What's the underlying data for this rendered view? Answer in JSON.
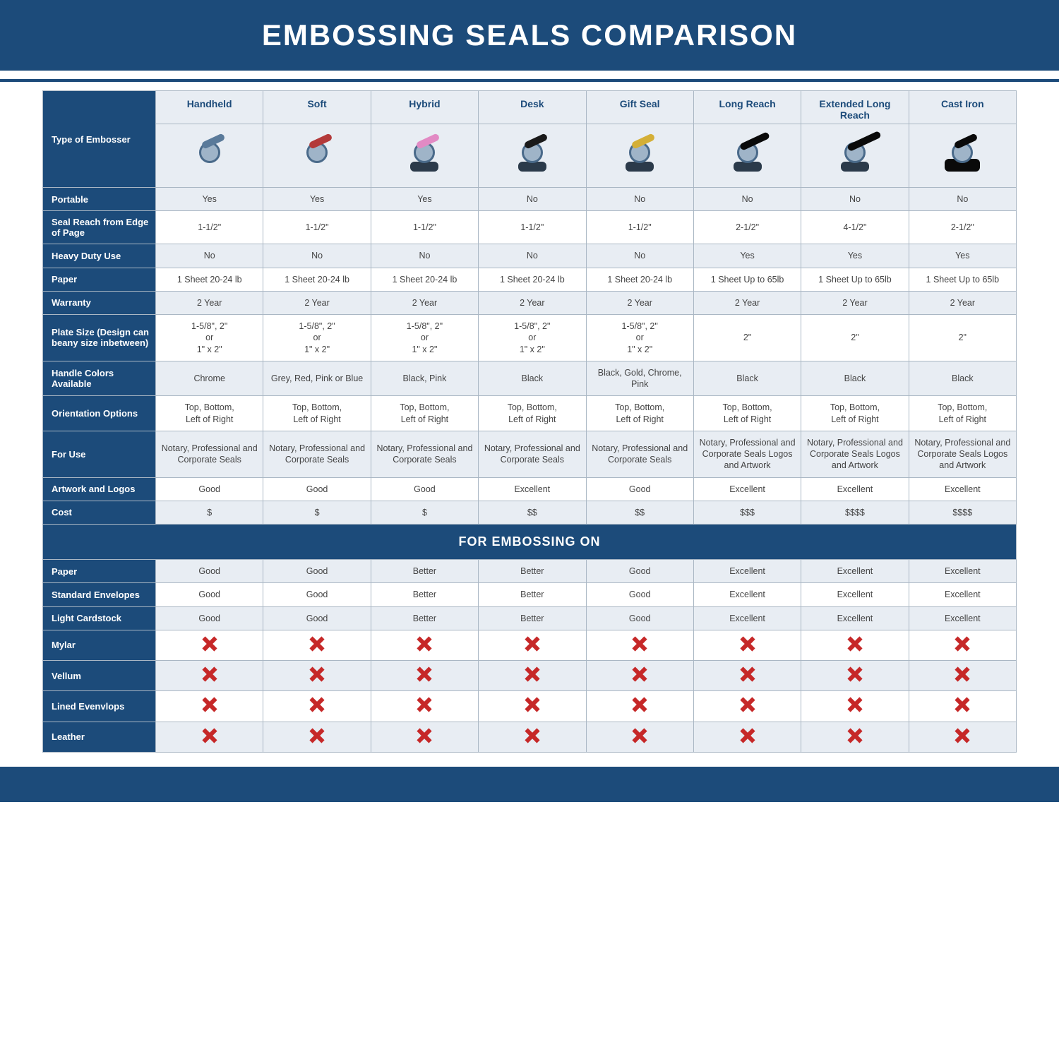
{
  "title": "EMBOSSING SEALS COMPARISON",
  "section_label": "FOR EMBOSSING ON",
  "colors": {
    "primary": "#1c4b7a",
    "header_bg": "#e8edf3",
    "alt_row_bg": "#e8edf3",
    "border": "#aab7c4",
    "x_red": "#c62828",
    "text": "#444444"
  },
  "row_header_label": "Type of Embosser",
  "columns": [
    {
      "key": "handheld",
      "label": "Handheld"
    },
    {
      "key": "soft",
      "label": "Soft"
    },
    {
      "key": "hybrid",
      "label": "Hybrid"
    },
    {
      "key": "desk",
      "label": "Desk"
    },
    {
      "key": "gift",
      "label": "Gift Seal"
    },
    {
      "key": "long",
      "label": "Long Reach"
    },
    {
      "key": "xlong",
      "label": "Extended Long Reach"
    },
    {
      "key": "iron",
      "label": "Cast Iron"
    }
  ],
  "rows": [
    {
      "label": "Portable",
      "alt": true,
      "cells": [
        "Yes",
        "Yes",
        "Yes",
        "No",
        "No",
        "No",
        "No",
        "No"
      ]
    },
    {
      "label": "Seal Reach from Edge of Page",
      "alt": false,
      "cells": [
        "1-1/2\"",
        "1-1/2\"",
        "1-1/2\"",
        "1-1/2\"",
        "1-1/2\"",
        "2-1/2\"",
        "4-1/2\"",
        "2-1/2\""
      ]
    },
    {
      "label": "Heavy Duty Use",
      "alt": true,
      "cells": [
        "No",
        "No",
        "No",
        "No",
        "No",
        "Yes",
        "Yes",
        "Yes"
      ]
    },
    {
      "label": "Paper",
      "alt": false,
      "cells": [
        "1 Sheet 20-24 lb",
        "1 Sheet 20-24 lb",
        "1 Sheet 20-24 lb",
        "1 Sheet 20-24 lb",
        "1 Sheet 20-24 lb",
        "1 Sheet Up to 65lb",
        "1 Sheet Up to 65lb",
        "1 Sheet Up to 65lb"
      ]
    },
    {
      "label": "Warranty",
      "alt": true,
      "cells": [
        "2 Year",
        "2 Year",
        "2 Year",
        "2 Year",
        "2 Year",
        "2 Year",
        "2 Year",
        "2 Year"
      ]
    },
    {
      "label": "Plate Size (Design can beany size inbetween)",
      "alt": false,
      "cells": [
        "1-5/8\", 2\"\nor\n1\" x 2\"",
        "1-5/8\", 2\"\nor\n1\" x 2\"",
        "1-5/8\", 2\"\nor\n1\" x 2\"",
        "1-5/8\", 2\"\nor\n1\" x 2\"",
        "1-5/8\", 2\"\nor\n1\" x 2\"",
        "2\"",
        "2\"",
        "2\""
      ]
    },
    {
      "label": "Handle Colors Available",
      "alt": true,
      "cells": [
        "Chrome",
        "Grey, Red, Pink or Blue",
        "Black, Pink",
        "Black",
        "Black, Gold, Chrome, Pink",
        "Black",
        "Black",
        "Black"
      ]
    },
    {
      "label": "Orientation Options",
      "alt": false,
      "cells": [
        "Top, Bottom,\nLeft of Right",
        "Top, Bottom,\nLeft of Right",
        "Top, Bottom,\nLeft of Right",
        "Top, Bottom,\nLeft of Right",
        "Top, Bottom,\nLeft of Right",
        "Top, Bottom,\nLeft of Right",
        "Top, Bottom,\nLeft of Right",
        "Top, Bottom,\nLeft of Right"
      ]
    },
    {
      "label": "For Use",
      "alt": true,
      "cells": [
        "Notary, Professional and Corporate Seals",
        "Notary, Professional and Corporate Seals",
        "Notary, Professional and Corporate Seals",
        "Notary, Professional and Corporate Seals",
        "Notary, Professional and Corporate Seals",
        "Notary, Professional and Corporate Seals Logos and Artwork",
        "Notary, Professional and Corporate Seals Logos and Artwork",
        "Notary, Professional and Corporate Seals Logos and Artwork"
      ]
    },
    {
      "label": "Artwork and Logos",
      "alt": false,
      "cells": [
        "Good",
        "Good",
        "Good",
        "Excellent",
        "Good",
        "Excellent",
        "Excellent",
        "Excellent"
      ]
    },
    {
      "label": "Cost",
      "alt": true,
      "cells": [
        "$",
        "$",
        "$",
        "$$",
        "$$",
        "$$$",
        "$$$$",
        "$$$$"
      ]
    }
  ],
  "emboss_rows": [
    {
      "label": "Paper",
      "alt": true,
      "cells": [
        "Good",
        "Good",
        "Better",
        "Better",
        "Good",
        "Excellent",
        "Excellent",
        "Excellent"
      ]
    },
    {
      "label": "Standard Envelopes",
      "alt": false,
      "cells": [
        "Good",
        "Good",
        "Better",
        "Better",
        "Good",
        "Excellent",
        "Excellent",
        "Excellent"
      ]
    },
    {
      "label": "Light Cardstock",
      "alt": true,
      "cells": [
        "Good",
        "Good",
        "Better",
        "Better",
        "Good",
        "Excellent",
        "Excellent",
        "Excellent"
      ]
    },
    {
      "label": "Mylar",
      "alt": false,
      "cells": [
        "X",
        "X",
        "X",
        "X",
        "X",
        "X",
        "X",
        "X"
      ]
    },
    {
      "label": "Vellum",
      "alt": true,
      "cells": [
        "X",
        "X",
        "X",
        "X",
        "X",
        "X",
        "X",
        "X"
      ]
    },
    {
      "label": "Lined Evenvlops",
      "alt": false,
      "cells": [
        "X",
        "X",
        "X",
        "X",
        "X",
        "X",
        "X",
        "X"
      ]
    },
    {
      "label": "Leather",
      "alt": true,
      "cells": [
        "X",
        "X",
        "X",
        "X",
        "X",
        "X",
        "X",
        "X"
      ]
    }
  ]
}
